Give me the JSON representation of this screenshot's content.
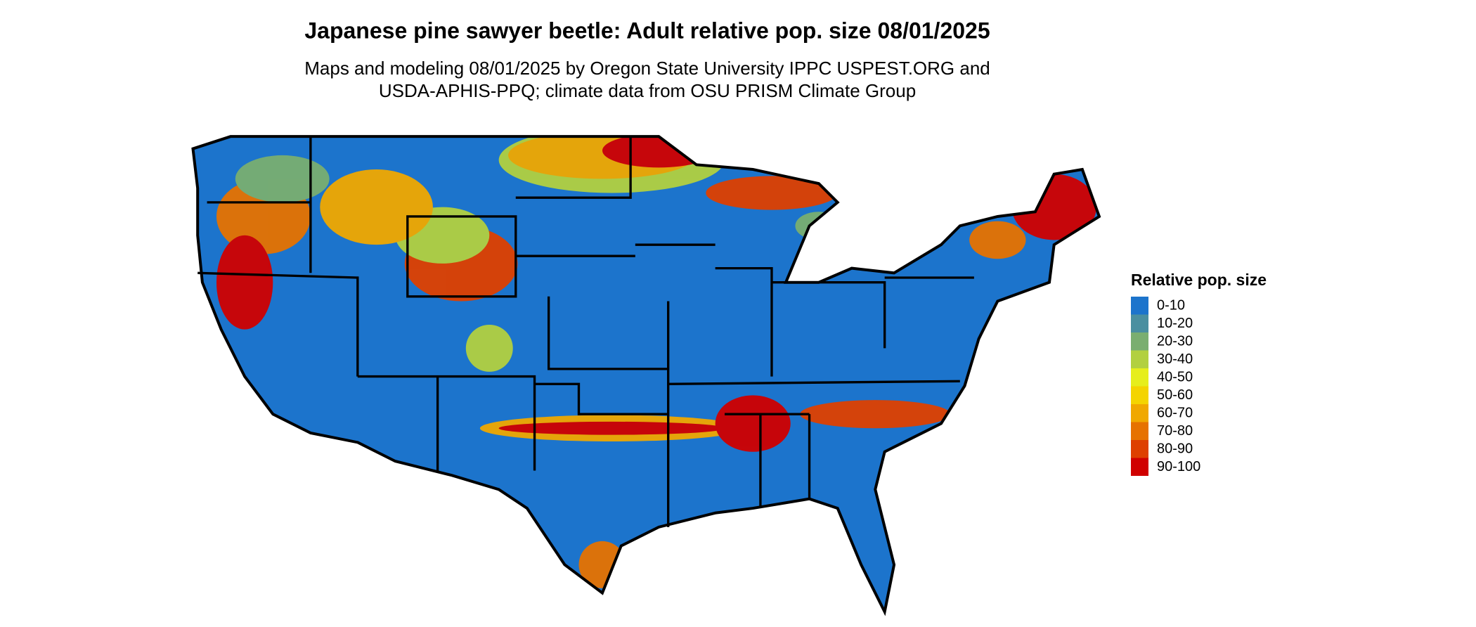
{
  "title": "Japanese pine sawyer beetle: Adult relative pop. size 08/01/2025",
  "subtitle_lines": [
    "Maps and modeling 08/01/2025 by Oregon State University IPPC USPEST.ORG and",
    "USDA-APHIS-PPQ; climate data from OSU PRISM Climate Group"
  ],
  "legend": {
    "title": "Relative pop. size",
    "items": [
      {
        "label": "0-10",
        "color": "#1c74cc"
      },
      {
        "label": "10-20",
        "color": "#4a8fa0"
      },
      {
        "label": "20-30",
        "color": "#7aae70"
      },
      {
        "label": "30-40",
        "color": "#b2d040"
      },
      {
        "label": "40-50",
        "color": "#e6ee1c"
      },
      {
        "label": "50-60",
        "color": "#f4d400"
      },
      {
        "label": "60-70",
        "color": "#f0a800"
      },
      {
        "label": "70-80",
        "color": "#e67200"
      },
      {
        "label": "80-90",
        "color": "#de4000"
      },
      {
        "label": "90-100",
        "color": "#d00000"
      }
    ]
  }
}
